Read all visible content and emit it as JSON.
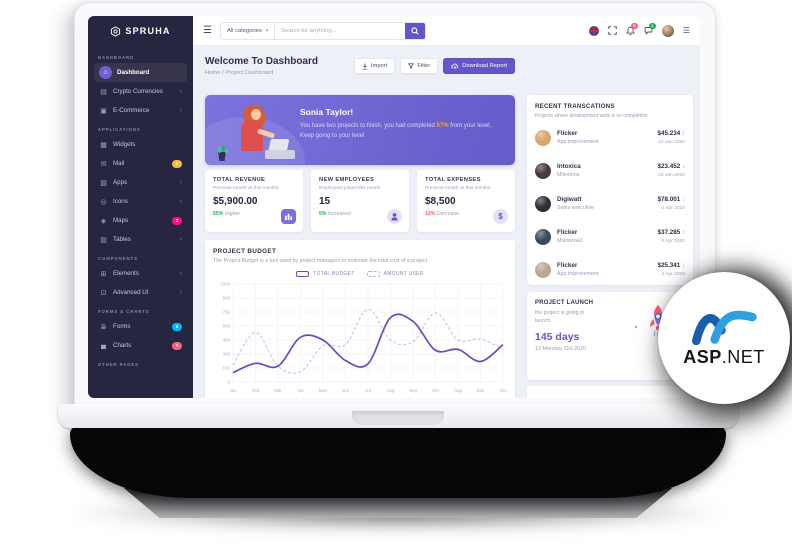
{
  "colors": {
    "accent": "#6157c8",
    "sidebar_bg": "#272640",
    "green": "#19b159",
    "red": "#f16d75",
    "orange": "#ffa02e",
    "budget_line": "#5b51c7",
    "used_line": "#c5c1ea",
    "mail_badge": "#f7b731",
    "maps_badge": "#f5127b",
    "forms_badge": "#01b8ff",
    "charts_badge": "#fd6074"
  },
  "icons": {
    "hamburger": "☰",
    "caret_down": "▾",
    "chevron_right": "›",
    "menu_right": "☰",
    "up_arrow": "↑",
    "down_arrow": "↓",
    "breadcrumb_sep": "/"
  },
  "sidebar": {
    "logo": "SPRUHA",
    "sections": [
      {
        "label": "DASHBOARD",
        "items": [
          {
            "label": "Dashboard",
            "icon": "home-icon",
            "glyph": "⌂",
            "active": true
          },
          {
            "label": "Crypto Currencies",
            "icon": "card-icon",
            "glyph": "▤",
            "arrow": true
          },
          {
            "label": "E-Commerce",
            "icon": "shop-icon",
            "glyph": "▣",
            "arrow": true
          }
        ]
      },
      {
        "label": "APPLICATIONS",
        "items": [
          {
            "label": "Widgets",
            "icon": "widgets-icon",
            "glyph": "▦"
          },
          {
            "label": "Mail",
            "icon": "mail-icon",
            "glyph": "✉",
            "badge": "2",
            "badge_color": "#f7b731"
          },
          {
            "label": "Apps",
            "icon": "apps-icon",
            "glyph": "▧",
            "arrow": true
          },
          {
            "label": "Icons",
            "icon": "icons-icon",
            "glyph": "◎",
            "arrow": true
          },
          {
            "label": "Maps",
            "icon": "maps-icon",
            "glyph": "◈",
            "badge": "2",
            "badge_color": "#f5127b"
          },
          {
            "label": "Tables",
            "icon": "tables-icon",
            "glyph": "▥",
            "arrow": true
          }
        ]
      },
      {
        "label": "COMPONENTS",
        "items": [
          {
            "label": "Elements",
            "icon": "elements-icon",
            "glyph": "⊞",
            "arrow": true
          },
          {
            "label": "Advanced UI",
            "icon": "advanced-ui-icon",
            "glyph": "⊡",
            "arrow": true
          }
        ]
      },
      {
        "label": "FORMS & CHARTS",
        "items": [
          {
            "label": "Forms",
            "icon": "forms-icon",
            "glyph": "≣",
            "badge": "6",
            "badge_color": "#01b8ff"
          },
          {
            "label": "Charts",
            "icon": "charts-icon",
            "glyph": "▄",
            "badge": "5",
            "badge_color": "#fd6074"
          }
        ]
      },
      {
        "label": "OTHER PAGES",
        "items": []
      }
    ]
  },
  "header": {
    "category": "All categories",
    "search_placeholder": "Search for anything...",
    "bell_badge": "5",
    "chat_badge": "2"
  },
  "page": {
    "title": "Welcome To Dashboard",
    "breadcrumb_home": "Home",
    "breadcrumb_current": "Project Dashboard",
    "actions": {
      "import": "Import",
      "filter": "Filter",
      "download": "Download Report"
    }
  },
  "banner": {
    "title": "Sonia Taylor!",
    "text_before": "You have two projects to finish, you had completed ",
    "highlight": "57%",
    "text_after": " from your level, Keep going to your level"
  },
  "stats": [
    {
      "title": "TOTAL REVENUE",
      "subtitle": "Previous month vs this months",
      "value": "$5,900.00",
      "delta": "55%",
      "delta_text": "Higher",
      "delta_color": "#19b159",
      "icon": "revenue-icon",
      "icon_type": "sq"
    },
    {
      "title": "NEW EMPLOYEES",
      "subtitle": "Employees joined this month",
      "value": "15",
      "delta": "5%",
      "delta_text": "Increased",
      "delta_color": "#19b159",
      "icon": "employees-icon",
      "icon_type": "ci-person"
    },
    {
      "title": "TOTAL EXPENSES",
      "subtitle": "Previous month vs this months",
      "value": "$8,500",
      "delta": "12%",
      "delta_text": "Decrease",
      "delta_color": "#fd6074",
      "icon": "expenses-icon",
      "icon_type": "ci-dollar"
    }
  ],
  "chart_card": {
    "title": "PROJECT BUDGET",
    "subtitle": "The Project Budget is a tool used by project managers to estimate the total cost of a project"
  },
  "chart_data": {
    "type": "line",
    "x": [
      "Jan",
      "Feb",
      "Mar",
      "Apr",
      "May",
      "Jun",
      "Jul",
      "Aug",
      "Sep",
      "Oct",
      "Aug",
      "Sep",
      "Oct"
    ],
    "series": [
      {
        "name": "TOTAL BUDGET",
        "style": "solid",
        "color": "#5b51c7",
        "values": [
          100,
          200,
          170,
          480,
          450,
          230,
          195,
          690,
          650,
          340,
          350,
          220,
          400
        ]
      },
      {
        "name": "AMOUNT USED",
        "style": "dashed",
        "color": "#c5c1ea",
        "values": [
          180,
          530,
          170,
          110,
          390,
          400,
          780,
          450,
          430,
          740,
          450,
          460,
          350
        ]
      }
    ],
    "ylim": [
      0,
      1050
    ],
    "yticks": [
      0,
      150,
      300,
      450,
      600,
      750,
      900,
      1050
    ],
    "grid": true,
    "legend_position": "top"
  },
  "transactions": {
    "title": "RECENT TRANSCATIONS",
    "subtitle": "Projects where development work is on completion",
    "rows": [
      {
        "name": "Flicker",
        "role": "App improvement",
        "amount": "$45.234",
        "direction": "up",
        "date": "12 Jan 2020",
        "avatar_color": "#d9a66c"
      },
      {
        "name": "Intoxica",
        "role": "Milestone",
        "amount": "$23.452",
        "direction": "down",
        "date": "23 Jan 2020",
        "avatar_color": "#4a3a3d"
      },
      {
        "name": "Digiwatt",
        "role": "Sales executive",
        "amount": "$78.001",
        "direction": "down",
        "date": "4 Apr 2020",
        "avatar_color": "#2e2e38"
      },
      {
        "name": "Flicker",
        "role": "Milestone2",
        "amount": "$37.285",
        "direction": "up",
        "date": "4 Apr 2020",
        "avatar_color": "#3a4a5a"
      },
      {
        "name": "Flicker",
        "role": "App improvement",
        "amount": "$25.341",
        "direction": "down",
        "date": "4 Apr 2020",
        "avatar_color": "#b9a890"
      }
    ]
  },
  "launch": {
    "title": "PROJECT LAUNCH",
    "subtitle": "the project is going to launch",
    "days": "145 days",
    "date": "12 Monday, Oct 2020"
  },
  "aspnet_badge": {
    "text_bold": "ASP",
    "text_regular": ".NET"
  }
}
